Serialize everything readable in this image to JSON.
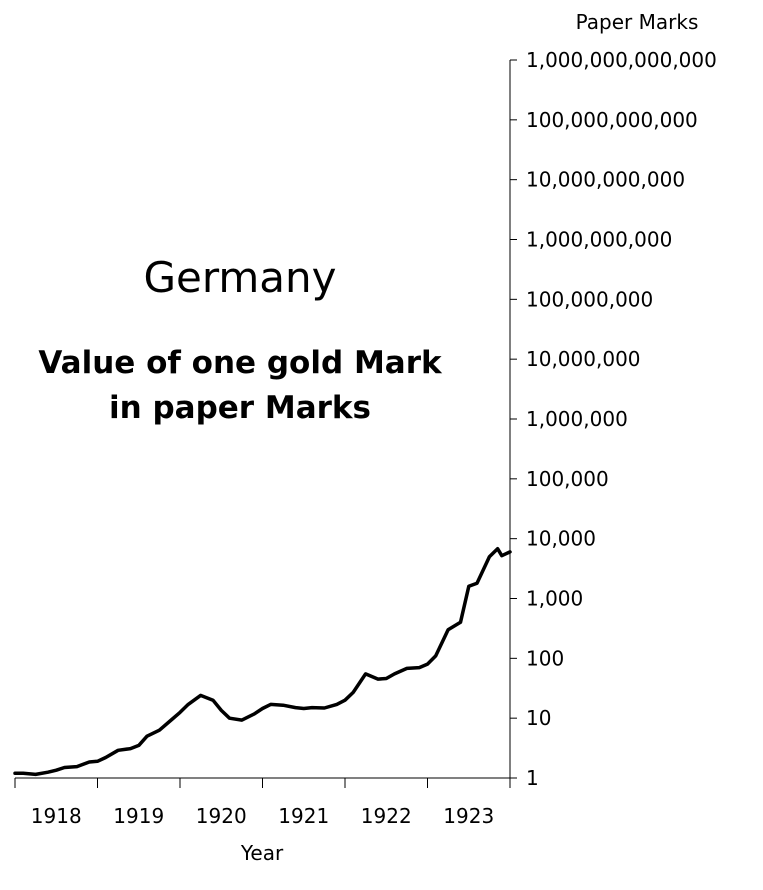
{
  "chart_data": {
    "type": "line",
    "title": "Germany",
    "subtitle_lines": [
      "Value of one gold Mark",
      "in paper Marks"
    ],
    "xlabel": "Year",
    "ylabel": "Paper Marks",
    "yscale": "log",
    "ylim": [
      1,
      1000000000000
    ],
    "xlim": [
      1918.0,
      1924.0
    ],
    "x_ticks": [
      1918,
      1919,
      1920,
      1921,
      1922,
      1923
    ],
    "y_ticks": [
      "1",
      "10",
      "100",
      "1,000",
      "10,000",
      "100,000",
      "1,000,000",
      "10,000,000",
      "100,000,000",
      "1,000,000,000",
      "10,000,000,000",
      "100,000,000,000",
      "1,000,000,000,000"
    ],
    "grid": false,
    "legend": "none",
    "line_color": "#000000",
    "series": [
      {
        "x": [
          1918.0,
          1918.1,
          1918.25,
          1918.4,
          1918.5,
          1918.6,
          1918.75,
          1918.9,
          1919.0,
          1919.1,
          1919.25,
          1919.4,
          1919.5,
          1919.6,
          1919.75,
          1919.9,
          1920.0,
          1920.1,
          1920.25,
          1920.4,
          1920.5,
          1920.6,
          1920.75,
          1920.9,
          1921.0,
          1921.1,
          1921.25,
          1921.4,
          1921.5,
          1921.6,
          1921.75,
          1921.9,
          1922.0,
          1922.1,
          1922.25,
          1922.4,
          1922.5,
          1922.6,
          1922.75,
          1922.9,
          1923.0,
          1923.1,
          1923.25,
          1923.4,
          1923.5,
          1923.6,
          1923.75,
          1923.85,
          1923.9,
          1924.0
        ],
        "values": [
          1.2,
          1.2,
          1.15,
          1.25,
          1.35,
          1.5,
          1.55,
          1.85,
          1.9,
          2.2,
          2.9,
          3.1,
          3.5,
          5.0,
          6.3,
          9.5,
          12.5,
          17.0,
          24.0,
          20.0,
          13.5,
          10.0,
          9.3,
          11.8,
          14.5,
          17.0,
          16.5,
          15.0,
          14.5,
          15.0,
          14.8,
          17.0,
          20.0,
          27.0,
          55.0,
          45.0,
          46.0,
          55.0,
          68.0,
          70.0,
          80.0,
          110.0,
          300.0,
          400.0,
          1600.0,
          1800.0,
          5000.0,
          6800.0,
          5200.0,
          6000.0
        ]
      }
    ]
  }
}
